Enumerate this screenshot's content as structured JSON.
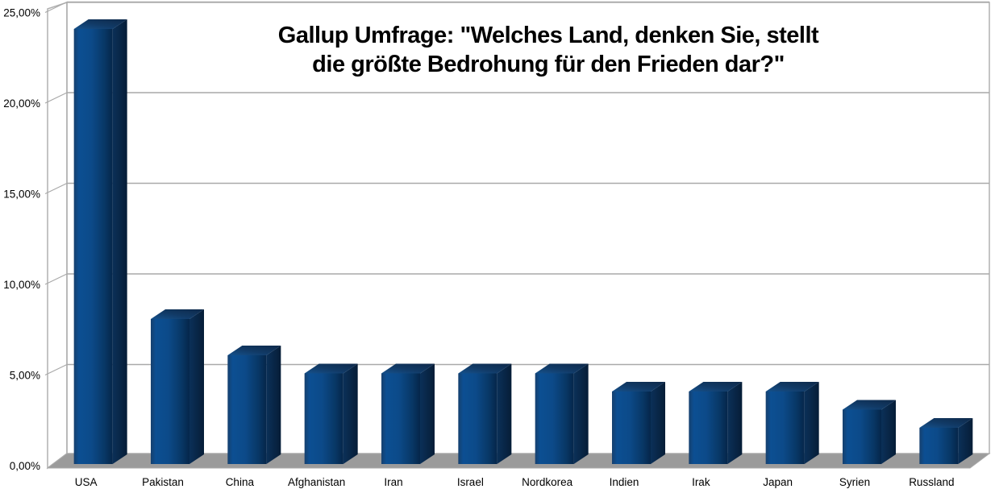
{
  "page": {
    "background": "#ffffff"
  },
  "chart_data": {
    "type": "bar",
    "style": "3d-column",
    "title": "Gallup Umfrage: \"Welches Land, denken Sie, stellt die größte Bedrohung für den Frieden dar?\"",
    "title_lines": [
      "Gallup Umfrage: \"Welches Land, denken Sie, stellt",
      "die größte Bedrohung für den Frieden dar?\""
    ],
    "categories": [
      "USA",
      "Pakistan",
      "China",
      "Afghanistan",
      "Iran",
      "Israel",
      "Nordkorea",
      "Indien",
      "Irak",
      "Japan",
      "Syrien",
      "Russland"
    ],
    "values": [
      24,
      8,
      6,
      5,
      5,
      5,
      5,
      4,
      4,
      4,
      3,
      2
    ],
    "value_unit": "%",
    "xlabel": "",
    "ylabel": "",
    "ylim": [
      0,
      25
    ],
    "yticks": [
      {
        "value": 0,
        "label": "0,00%"
      },
      {
        "value": 5,
        "label": "5,00%"
      },
      {
        "value": 10,
        "label": "10,00%"
      },
      {
        "value": 15,
        "label": "15,00%"
      },
      {
        "value": 20,
        "label": "20,00%"
      },
      {
        "value": 25,
        "label": "25,00%"
      }
    ],
    "grid": true,
    "legend": "none",
    "colors": {
      "bar_front_edge": "#16406e",
      "bar_front_light": "#0c4f92",
      "bar_front": "#0c4a89",
      "bar_front_shadow": "#083765",
      "bar_front_dark": "#05264a",
      "bar_side": "#0b3058",
      "bar_side_dark": "#061d37",
      "bar_top_light": "#15518c",
      "bar_top": "#113a66",
      "bar_top_dark": "#0e294a",
      "floor": "#9b9b9b",
      "wall_line": "#b0b0b0",
      "grid_line": "#a9a9a9",
      "text": "#000000",
      "background": "#ffffff"
    }
  }
}
